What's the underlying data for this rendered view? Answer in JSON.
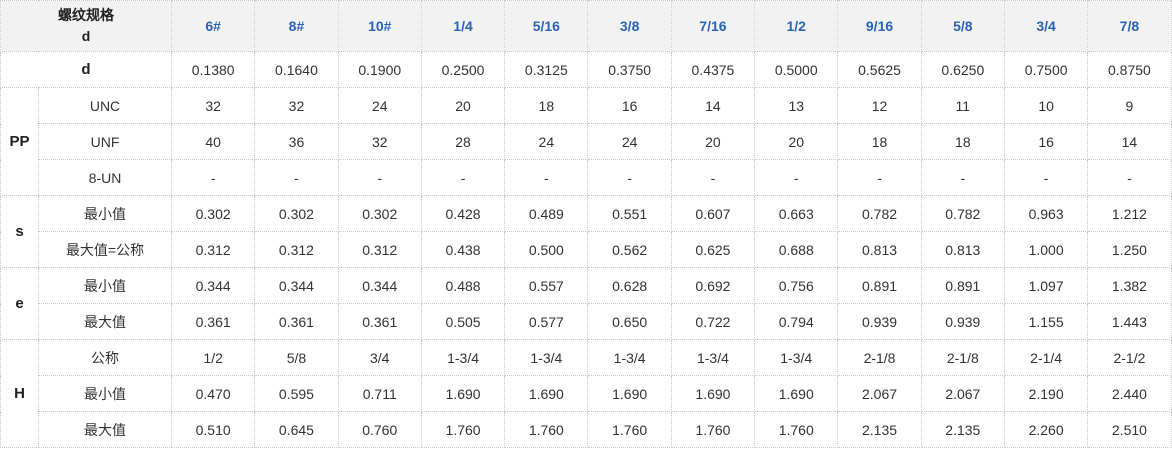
{
  "header": {
    "label_line1": "螺纹规格",
    "label_line2": "d",
    "sizes": [
      "6#",
      "8#",
      "10#",
      "1/4",
      "5/16",
      "3/8",
      "7/16",
      "1/2",
      "9/16",
      "5/8",
      "3/4",
      "7/8"
    ]
  },
  "colors": {
    "size_text": "#2a62b8",
    "header_bg": "#f2f2f2",
    "border": "#c8c8c8"
  },
  "d_row": {
    "label": "d",
    "values": [
      "0.1380",
      "0.1640",
      "0.1900",
      "0.2500",
      "0.3125",
      "0.3750",
      "0.4375",
      "0.5000",
      "0.5625",
      "0.6250",
      "0.7500",
      "0.8750"
    ]
  },
  "groups": [
    {
      "label": "PP",
      "rows": [
        {
          "label": "UNC",
          "values": [
            "32",
            "32",
            "24",
            "20",
            "18",
            "16",
            "14",
            "13",
            "12",
            "11",
            "10",
            "9"
          ]
        },
        {
          "label": "UNF",
          "values": [
            "40",
            "36",
            "32",
            "28",
            "24",
            "24",
            "20",
            "20",
            "18",
            "18",
            "16",
            "14"
          ]
        },
        {
          "label": "8-UN",
          "values": [
            "-",
            "-",
            "-",
            "-",
            "-",
            "-",
            "-",
            "-",
            "-",
            "-",
            "-",
            "-"
          ]
        }
      ]
    },
    {
      "label": "s",
      "rows": [
        {
          "label": "最小值",
          "values": [
            "0.302",
            "0.302",
            "0.302",
            "0.428",
            "0.489",
            "0.551",
            "0.607",
            "0.663",
            "0.782",
            "0.782",
            "0.963",
            "1.212"
          ]
        },
        {
          "label": "最大值=公称",
          "values": [
            "0.312",
            "0.312",
            "0.312",
            "0.438",
            "0.500",
            "0.562",
            "0.625",
            "0.688",
            "0.813",
            "0.813",
            "1.000",
            "1.250"
          ]
        }
      ]
    },
    {
      "label": "e",
      "rows": [
        {
          "label": "最小值",
          "values": [
            "0.344",
            "0.344",
            "0.344",
            "0.488",
            "0.557",
            "0.628",
            "0.692",
            "0.756",
            "0.891",
            "0.891",
            "1.097",
            "1.382"
          ]
        },
        {
          "label": "最大值",
          "values": [
            "0.361",
            "0.361",
            "0.361",
            "0.505",
            "0.577",
            "0.650",
            "0.722",
            "0.794",
            "0.939",
            "0.939",
            "1.155",
            "1.443"
          ]
        }
      ]
    },
    {
      "label": "H",
      "rows": [
        {
          "label": "公称",
          "values": [
            "1/2",
            "5/8",
            "3/4",
            "1-3/4",
            "1-3/4",
            "1-3/4",
            "1-3/4",
            "1-3/4",
            "2-1/8",
            "2-1/8",
            "2-1/4",
            "2-1/2"
          ]
        },
        {
          "label": "最小值",
          "values": [
            "0.470",
            "0.595",
            "0.711",
            "1.690",
            "1.690",
            "1.690",
            "1.690",
            "1.690",
            "2.067",
            "2.067",
            "2.190",
            "2.440"
          ]
        },
        {
          "label": "最大值",
          "values": [
            "0.510",
            "0.645",
            "0.760",
            "1.760",
            "1.760",
            "1.760",
            "1.760",
            "1.760",
            "2.135",
            "2.135",
            "2.260",
            "2.510"
          ]
        }
      ]
    }
  ]
}
